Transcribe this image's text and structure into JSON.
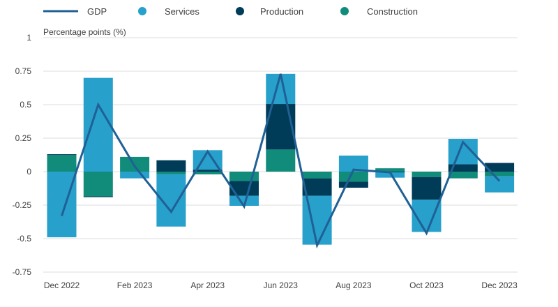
{
  "chart_data": {
    "type": "bar",
    "stacked": true,
    "ylabel": "Percentage points (%)",
    "ylim": [
      -0.75,
      1
    ],
    "yticks": [
      1,
      0.75,
      0.5,
      0.25,
      0,
      -0.25,
      -0.5,
      -0.75
    ],
    "ytick_labels": [
      "1",
      "0.75",
      "0.5",
      "0.25",
      "0",
      "-0.25",
      "-0.5",
      "-0.75"
    ],
    "grid": true,
    "legend_position": "top",
    "categories": [
      "Dec 2022",
      "Jan 2023",
      "Feb 2023",
      "Mar 2023",
      "Apr 2023",
      "May 2023",
      "Jun 2023",
      "Jul 2023",
      "Aug 2023",
      "Sep 2023",
      "Oct 2023",
      "Nov 2023",
      "Dec 2023"
    ],
    "xtick_labels": [
      "Dec 2022",
      "",
      "Feb 2023",
      "",
      "Apr 2023",
      "",
      "Jun 2023",
      "",
      "Aug 2023",
      "",
      "Oct 2023",
      "",
      "Dec 2023"
    ],
    "series": [
      {
        "name": "Services",
        "kind": "bar",
        "color": "#27a0cc",
        "values": [
          -0.49,
          0.7,
          -0.05,
          -0.39,
          0.145,
          -0.075,
          0.225,
          -0.365,
          0.12,
          -0.04,
          -0.24,
          0.19,
          -0.12
        ]
      },
      {
        "name": "Production",
        "kind": "bar",
        "color": "#003c57",
        "values": [
          0.005,
          -0.005,
          0,
          0.085,
          0.015,
          -0.11,
          0.34,
          -0.13,
          -0.045,
          -0.005,
          -0.17,
          0.055,
          0.065
        ]
      },
      {
        "name": "Construction",
        "kind": "bar",
        "color": "#118c7b",
        "values": [
          0.125,
          -0.185,
          0.11,
          -0.02,
          -0.02,
          -0.07,
          0.165,
          -0.05,
          -0.075,
          0.025,
          -0.04,
          -0.05,
          -0.035
        ]
      },
      {
        "name": "GDP",
        "kind": "line",
        "color": "#206095",
        "values": [
          -0.33,
          0.5,
          0.04,
          -0.3,
          0.15,
          -0.26,
          0.73,
          -0.55,
          0.015,
          -0.005,
          -0.46,
          0.22,
          -0.07
        ]
      }
    ]
  }
}
